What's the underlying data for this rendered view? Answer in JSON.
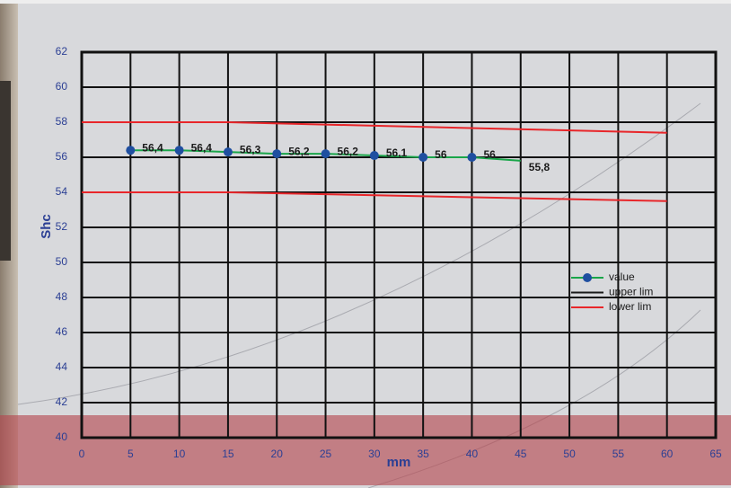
{
  "chart_data": {
    "type": "line",
    "x_label": "mm",
    "y_label": "Shc",
    "xlim": [
      0,
      65
    ],
    "xticks": [
      0,
      5,
      10,
      15,
      20,
      25,
      30,
      35,
      40,
      45,
      50,
      55,
      60,
      65
    ],
    "ylim": [
      40,
      62
    ],
    "yticks": [
      40,
      42,
      44,
      46,
      48,
      50,
      52,
      54,
      56,
      58,
      60,
      62
    ],
    "grid": true,
    "legend": "right",
    "series": [
      {
        "name": "value",
        "color": "#1aa64a",
        "marker_color": "#1f4fa0",
        "x": [
          5,
          10,
          15,
          20,
          25,
          30,
          35,
          40,
          45
        ],
        "values": [
          56.4,
          56.4,
          56.3,
          56.2,
          56.2,
          56.1,
          56,
          56,
          55.8
        ],
        "value_labels": [
          "56,4",
          "56,4",
          "56,3",
          "56,2",
          "56,2",
          "56,1",
          "56",
          "56",
          "55,8"
        ],
        "markers": [
          true,
          true,
          true,
          true,
          true,
          true,
          true,
          true,
          false
        ]
      },
      {
        "name": "upper lim",
        "color": "#e8262a",
        "legend_color": "#1a1a1a",
        "x": [
          0,
          15,
          60
        ],
        "values": [
          58,
          58,
          57.4
        ]
      },
      {
        "name": "lower lim",
        "color": "#e8262a",
        "x": [
          0,
          15,
          60
        ],
        "values": [
          54,
          54,
          53.5
        ]
      }
    ]
  }
}
